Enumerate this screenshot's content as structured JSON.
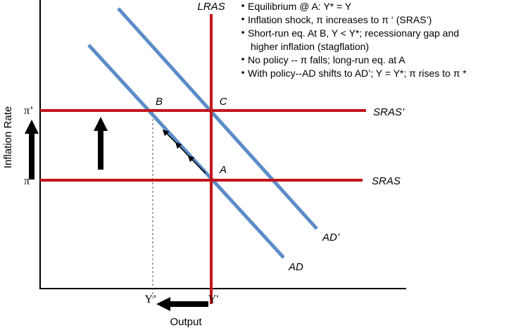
{
  "diagram": {
    "title": "LRAS",
    "bullets": [
      [
        "Equilibrium @ A: Y* = Y"
      ],
      [
        "Inflation shock, π increases to π ‘ (SRAS’)"
      ],
      [
        "Short-run eq. At B, Y < Y*; recessionary gap and",
        "higher inflation (stagflation)"
      ],
      [
        "No policy -- π falls; long-run eq. at A"
      ],
      [
        "With policy--AD shifts to AD’; Y = Y*; π  rises to π *"
      ]
    ],
    "points": {
      "a": "A",
      "b": "B",
      "c": "C"
    },
    "curves": {
      "sras_new": "SRAS’",
      "sras": "SRAS",
      "ad_new": "AD’",
      "ad": "AD"
    },
    "y_axis": {
      "label": "Inflation Rate",
      "high": "π’",
      "low": "π"
    },
    "x_axis": {
      "label": "Output",
      "y_low": "Y’",
      "y_star": "Y'"
    }
  }
}
